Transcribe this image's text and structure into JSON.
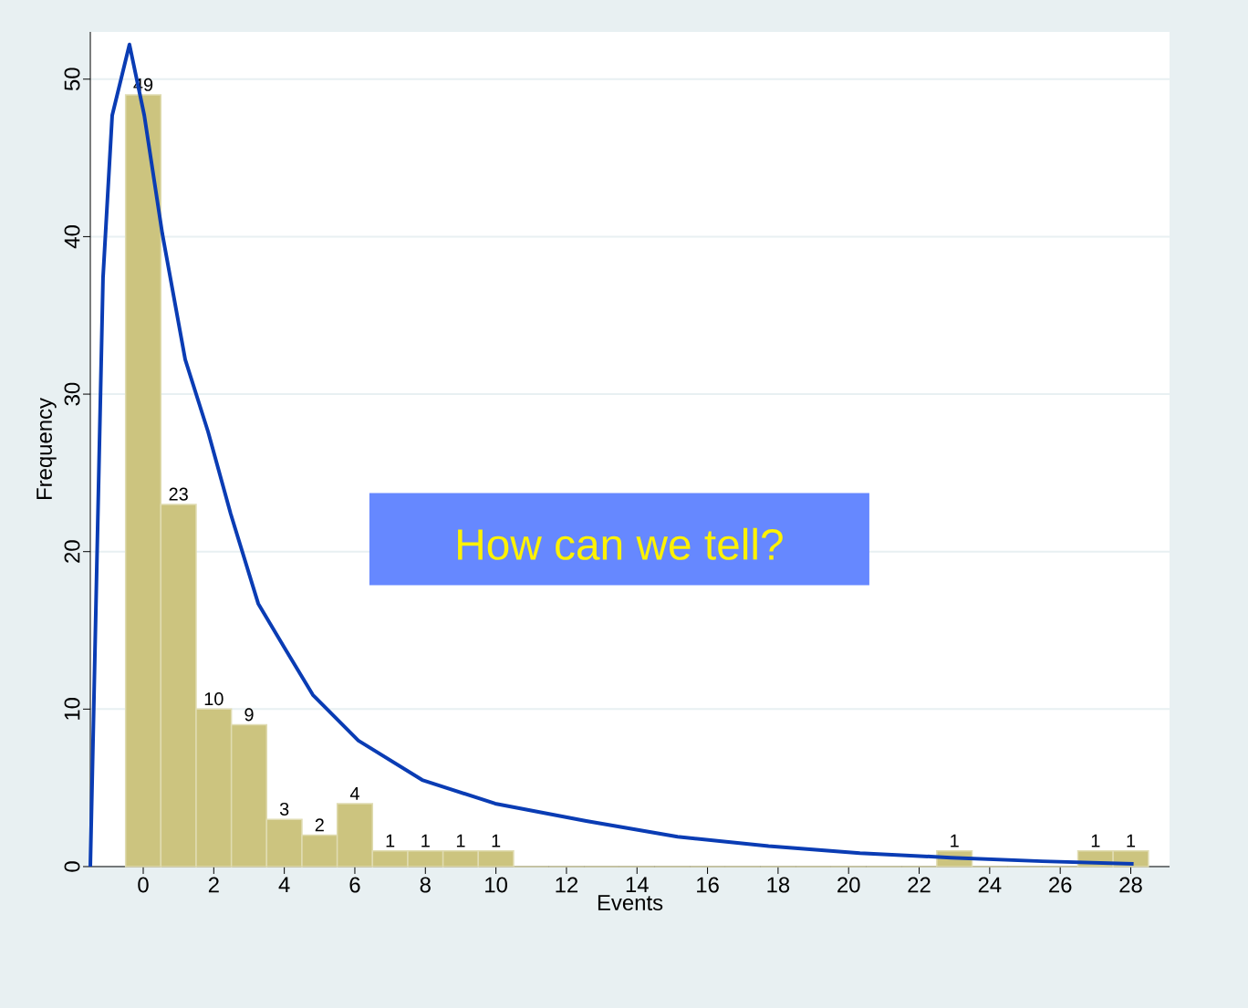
{
  "chart_data": {
    "type": "histogram",
    "xlabel": "Events",
    "ylabel": "Frequency",
    "bins": [
      -0.5,
      0.5,
      1.5,
      2.5,
      3.5,
      4.5,
      5.5,
      6.5,
      7.5,
      8.5,
      9.5,
      10.5,
      11.5,
      12.5,
      13.5,
      14.5,
      15.5,
      16.5,
      17.5,
      18.5,
      19.5,
      20.5,
      21.5,
      22.5,
      23.5,
      24.5,
      25.5,
      26.5,
      27.5,
      28.5
    ],
    "values": [
      49,
      23,
      10,
      9,
      3,
      2,
      4,
      1,
      1,
      1,
      1,
      0,
      0,
      0,
      0,
      0,
      0,
      0,
      0,
      0,
      0,
      0,
      0,
      1,
      0,
      0,
      0,
      1,
      1
    ],
    "value_labels": [
      "49",
      "23",
      "10",
      "9",
      "3",
      "2",
      "4",
      "1",
      "1",
      "1",
      "1",
      null,
      null,
      null,
      null,
      null,
      null,
      null,
      null,
      null,
      null,
      null,
      null,
      "1",
      null,
      null,
      null,
      "1",
      "1"
    ],
    "color": "#ccc47f",
    "series": [
      {
        "type": "line",
        "color": "#0a3cb4",
        "x": [
          -1.5,
          -1.14,
          -0.88,
          -0.39,
          0.03,
          0.54,
          1.19,
          1.84,
          2.48,
          3.26,
          4.03,
          4.81,
          6.1,
          7.91,
          9.98,
          12.56,
          15.15,
          17.73,
          20.32,
          22.9,
          25.49,
          28.08
        ],
        "values": [
          0,
          37.4,
          47.7,
          52.2,
          47.7,
          40.2,
          32.2,
          27.6,
          22.4,
          16.7,
          13.8,
          10.9,
          8.0,
          5.5,
          4.0,
          2.9,
          1.9,
          1.3,
          0.86,
          0.57,
          0.34,
          0.17
        ]
      }
    ],
    "annotations": [
      "How can we tell?"
    ],
    "xlim": [
      -1.5,
      29.1
    ],
    "ylim": [
      0,
      53
    ],
    "xticks": [
      0,
      2,
      4,
      6,
      8,
      10,
      12,
      14,
      16,
      18,
      20,
      22,
      24,
      26,
      28
    ],
    "yticks": [
      0,
      10,
      20,
      30,
      40,
      50
    ],
    "grid": "y"
  }
}
